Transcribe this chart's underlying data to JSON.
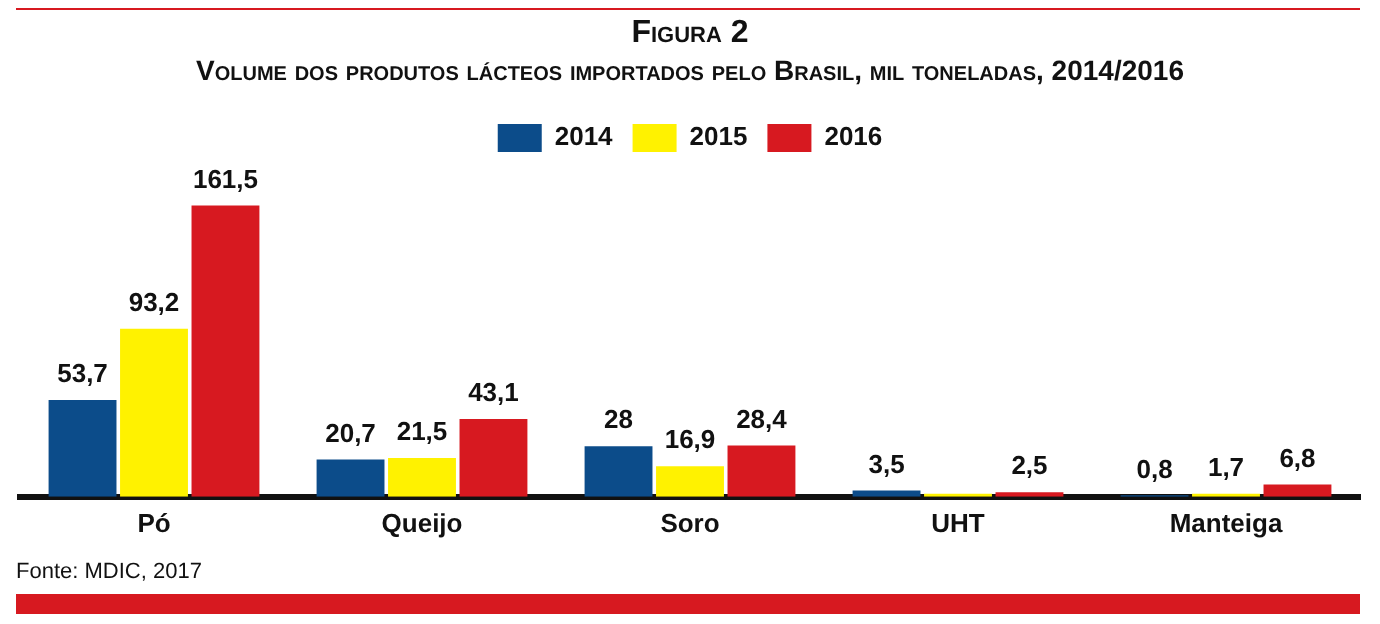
{
  "chart_data": {
    "type": "bar",
    "title": "Figura 2",
    "subtitle": "Volume dos produtos lácteos importados pelo Brasil, mil toneladas, 2014/2016",
    "categories": [
      "Pó",
      "Queijo",
      "Soro",
      "UHT",
      "Manteiga"
    ],
    "series": [
      {
        "name": "2014",
        "color": "#0c4c8a",
        "values": [
          53.7,
          20.7,
          28,
          3.5,
          0.8
        ],
        "value_labels": [
          "53,7",
          "20,7",
          "28",
          "3,5",
          "0,8"
        ]
      },
      {
        "name": "2015",
        "color": "#fff200",
        "values": [
          93.2,
          21.5,
          16.9,
          1.7,
          1.7
        ],
        "value_labels": [
          "93,2",
          "21,5",
          "16,9",
          null,
          "1,7"
        ]
      },
      {
        "name": "2016",
        "color": "#d71920",
        "values": [
          161.5,
          43.1,
          28.4,
          2.5,
          6.8
        ],
        "value_labels": [
          "161,5",
          "43,1",
          "28,4",
          "2,5",
          "6,8"
        ]
      }
    ],
    "legend": "top",
    "grid": false,
    "annotations": [
      "Fonte: MDIC, 2017"
    ]
  }
}
